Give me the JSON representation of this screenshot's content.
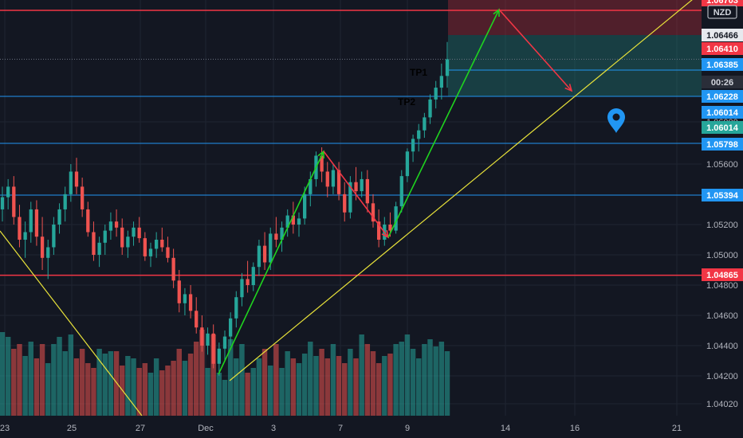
{
  "colors": {
    "background": "#131722",
    "grid": "#1f2431",
    "up_candle": "#26a69a",
    "down_candle": "#ef5350",
    "up_volume": "#26a69a",
    "down_volume": "#ef5350",
    "red_level": "#f23645",
    "blue_level": "#2196f3",
    "trendline": "#e8e23a",
    "arrow_green": "#1fd41f",
    "arrow_red": "#f23645",
    "tp_label": "#2ee62e",
    "badge_white": "#e7e9ee",
    "badge_text_dark": "#131722"
  },
  "instrument": {
    "symbol_badge": "NZD"
  },
  "countdown": "00:26",
  "annotations": {
    "tp1": "TP1",
    "tp2": "TP2"
  },
  "icons": {
    "marker": "map-pin-icon"
  },
  "price_labels": [
    {
      "price": 1.06703,
      "text": "1.06703",
      "style": "red"
    },
    {
      "price": 1.06466,
      "text": "1.06466",
      "style": "white"
    },
    {
      "price": 1.0641,
      "text": "1.06410",
      "style": "red"
    },
    {
      "price": 1.06385,
      "text": "1.06385",
      "style": "blue"
    },
    {
      "price": 1.06228,
      "text": "1.06228",
      "style": "blue"
    },
    {
      "price": 1.06014,
      "text": "1.06014",
      "style": "blue"
    },
    {
      "price": 1.06014,
      "text": "1.06014",
      "style": "teal"
    },
    {
      "price": 1.05798,
      "text": "1.05798",
      "style": "blue"
    },
    {
      "price": 1.05394,
      "text": "1.05394",
      "style": "blue"
    },
    {
      "price": 1.04865,
      "text": "1.04865",
      "style": "red"
    }
  ],
  "chart_data": {
    "type": "candlestick",
    "title": "",
    "xlabel": "",
    "ylabel": "",
    "ylim": [
      1.0399,
      1.0674
    ],
    "y_ticks": [
      1.0402,
      1.042,
      1.044,
      1.046,
      1.048,
      1.05,
      1.052,
      1.056,
      1.06
    ],
    "y_tick_labels": [
      "1.04020",
      "1.04200",
      "1.04400",
      "1.04600",
      "1.04800",
      "1.05000",
      "1.05200",
      "1.05600",
      "1.06000"
    ],
    "x_ticks": [
      "23",
      "25",
      "27",
      "Dec",
      "3",
      "7",
      "9",
      "14",
      "16",
      "21"
    ],
    "grid": true,
    "horizontal_levels": [
      {
        "price": 1.06703,
        "color": "red"
      },
      {
        "price": 1.06228,
        "color": "blue"
      },
      {
        "price": 1.05394,
        "color": "blue"
      },
      {
        "price": 1.04865,
        "color": "red"
      }
    ],
    "candles": [
      [
        1.053,
        1.0545,
        1.0522,
        1.0538
      ],
      [
        1.0538,
        1.055,
        1.053,
        1.0545
      ],
      [
        1.0545,
        1.0552,
        1.052,
        1.0525
      ],
      [
        1.0525,
        1.0533,
        1.0505,
        1.051
      ],
      [
        1.051,
        1.0522,
        1.0498,
        1.0515
      ],
      [
        1.0515,
        1.0535,
        1.0508,
        1.053
      ],
      [
        1.053,
        1.0536,
        1.0506,
        1.0512
      ],
      [
        1.0512,
        1.0525,
        1.049,
        1.0498
      ],
      [
        1.0498,
        1.051,
        1.0484,
        1.0505
      ],
      [
        1.0505,
        1.0525,
        1.05,
        1.052
      ],
      [
        1.052,
        1.0534,
        1.0514,
        1.053
      ],
      [
        1.053,
        1.0545,
        1.0522,
        1.054
      ],
      [
        1.054,
        1.056,
        1.0535,
        1.0555
      ],
      [
        1.0555,
        1.0566,
        1.054,
        1.0545
      ],
      [
        1.0545,
        1.0551,
        1.0525,
        1.053
      ],
      [
        1.053,
        1.0535,
        1.0512,
        1.0515
      ],
      [
        1.0515,
        1.0522,
        1.0496,
        1.05
      ],
      [
        1.05,
        1.0512,
        1.0492,
        1.0508
      ],
      [
        1.0508,
        1.052,
        1.05,
        1.0516
      ],
      [
        1.0516,
        1.0528,
        1.051,
        1.0522
      ],
      [
        1.0522,
        1.053,
        1.0512,
        1.0518
      ],
      [
        1.0518,
        1.0524,
        1.05,
        1.0505
      ],
      [
        1.0505,
        1.0516,
        1.0498,
        1.0512
      ],
      [
        1.0512,
        1.0522,
        1.0506,
        1.0518
      ],
      [
        1.0518,
        1.0525,
        1.0508,
        1.0511
      ],
      [
        1.0511,
        1.0515,
        1.0496,
        1.0499
      ],
      [
        1.0499,
        1.0508,
        1.0492,
        1.0504
      ],
      [
        1.0504,
        1.0515,
        1.0498,
        1.051
      ],
      [
        1.051,
        1.0518,
        1.0502,
        1.0505
      ],
      [
        1.0505,
        1.0512,
        1.0495,
        1.0498
      ],
      [
        1.0498,
        1.0504,
        1.0478,
        1.0483
      ],
      [
        1.0483,
        1.049,
        1.0462,
        1.0468
      ],
      [
        1.0468,
        1.0478,
        1.046,
        1.0474
      ],
      [
        1.0474,
        1.048,
        1.0458,
        1.0463
      ],
      [
        1.0463,
        1.0472,
        1.0448,
        1.0452
      ],
      [
        1.0452,
        1.046,
        1.0436,
        1.044
      ],
      [
        1.044,
        1.0452,
        1.0434,
        1.0448
      ],
      [
        1.0448,
        1.0454,
        1.0425,
        1.0428
      ],
      [
        1.0428,
        1.0442,
        1.042,
        1.0438
      ],
      [
        1.0438,
        1.045,
        1.043,
        1.0446
      ],
      [
        1.0446,
        1.0462,
        1.044,
        1.0458
      ],
      [
        1.0458,
        1.0476,
        1.0452,
        1.0472
      ],
      [
        1.0472,
        1.0488,
        1.0466,
        1.0484
      ],
      [
        1.0484,
        1.0496,
        1.0475,
        1.048
      ],
      [
        1.048,
        1.0495,
        1.0476,
        1.0492
      ],
      [
        1.0492,
        1.051,
        1.0486,
        1.0506
      ],
      [
        1.0506,
        1.0515,
        1.049,
        1.0495
      ],
      [
        1.0495,
        1.0518,
        1.049,
        1.0514
      ],
      [
        1.0514,
        1.0525,
        1.0505,
        1.051
      ],
      [
        1.051,
        1.0522,
        1.0502,
        1.0518
      ],
      [
        1.0518,
        1.053,
        1.0512,
        1.0526
      ],
      [
        1.0526,
        1.0535,
        1.0514,
        1.052
      ],
      [
        1.052,
        1.0528,
        1.0512,
        1.0524
      ],
      [
        1.0524,
        1.0545,
        1.052,
        1.054
      ],
      [
        1.054,
        1.0555,
        1.0532,
        1.055
      ],
      [
        1.055,
        1.0572,
        1.0545,
        1.0568
      ],
      [
        1.0568,
        1.0576,
        1.0548,
        1.0555
      ],
      [
        1.0555,
        1.0562,
        1.0538,
        1.0545
      ],
      [
        1.0545,
        1.056,
        1.054,
        1.0556
      ],
      [
        1.0556,
        1.0562,
        1.0536,
        1.054
      ],
      [
        1.054,
        1.0548,
        1.0522,
        1.0528
      ],
      [
        1.0528,
        1.0552,
        1.0524,
        1.0548
      ],
      [
        1.0548,
        1.0558,
        1.0536,
        1.0542
      ],
      [
        1.0542,
        1.0555,
        1.0538,
        1.055
      ],
      [
        1.055,
        1.0556,
        1.0528,
        1.0534
      ],
      [
        1.0534,
        1.054,
        1.0518,
        1.0522
      ],
      [
        1.0522,
        1.053,
        1.0505,
        1.051
      ],
      [
        1.051,
        1.0525,
        1.0506,
        1.052
      ],
      [
        1.052,
        1.0528,
        1.0512,
        1.0516
      ],
      [
        1.0516,
        1.0535,
        1.0514,
        1.0532
      ],
      [
        1.0532,
        1.0556,
        1.0528,
        1.0552
      ],
      [
        1.0552,
        1.0575,
        1.0548,
        1.0572
      ],
      [
        1.0572,
        1.0588,
        1.0562,
        1.0584
      ],
      [
        1.0584,
        1.0598,
        1.0572,
        1.0592
      ],
      [
        1.0592,
        1.0608,
        1.0585,
        1.0604
      ],
      [
        1.0604,
        1.0624,
        1.0598,
        1.062
      ],
      [
        1.062,
        1.0632,
        1.0612,
        1.0628
      ],
      [
        1.0628,
        1.064,
        1.062,
        1.0635
      ],
      [
        1.0635,
        1.0645,
        1.0628,
        1.0641
      ]
    ],
    "volume": [
      35,
      33,
      28,
      30,
      25,
      31,
      24,
      30,
      22,
      30,
      33,
      27,
      34,
      24,
      28,
      22,
      20,
      28,
      26,
      27,
      27,
      21,
      25,
      24,
      20,
      22,
      18,
      24,
      19,
      21,
      23,
      28,
      23,
      26,
      31,
      36,
      20,
      34,
      18,
      15,
      32,
      24,
      30,
      18,
      20,
      24,
      28,
      21,
      30,
      20,
      27,
      24,
      22,
      26,
      31,
      25,
      28,
      24,
      30,
      25,
      22,
      28,
      24,
      34,
      30,
      27,
      22,
      25,
      26,
      30,
      31,
      34,
      28,
      24,
      30,
      32,
      29,
      31,
      27
    ]
  }
}
